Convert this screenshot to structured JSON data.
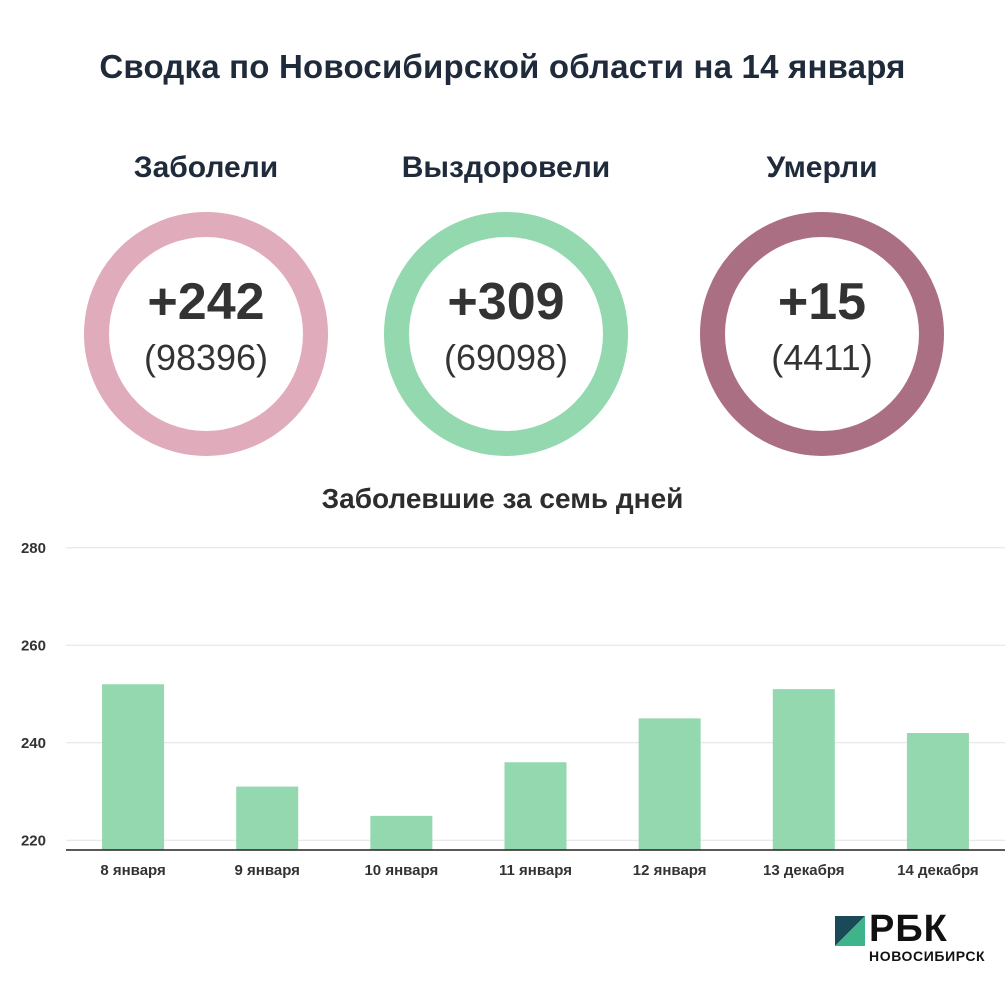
{
  "title": "Сводка по Новосибирской области на 14 января",
  "stats": [
    {
      "label": "Заболели",
      "delta": "+242",
      "total": "(98396)",
      "color": "#e0abba"
    },
    {
      "label": "Выздоровели",
      "delta": "+309",
      "total": "(69098)",
      "color": "#93d8ae"
    },
    {
      "label": "Умерли",
      "delta": "+15",
      "total": "(4411)",
      "color": "#ab6f84"
    }
  ],
  "chart_title": "Заболевшие за семь дней",
  "chart_data": {
    "type": "bar",
    "title": "Заболевшие за семь дней",
    "categories": [
      "8 января",
      "9 января",
      "10 января",
      "11 января",
      "12 января",
      "13 декабря",
      "14 декабря"
    ],
    "values": [
      252,
      231,
      225,
      236,
      245,
      251,
      242
    ],
    "yticks": [
      220,
      240,
      260,
      280
    ],
    "ylim": [
      218,
      282
    ],
    "grid": true,
    "bar_color": "#93d8ae"
  },
  "logo": {
    "text": "РБК",
    "sub": "НОВОСИБИРСК",
    "mark_dark": "#1a4a5a",
    "mark_light": "#3fb48a"
  }
}
